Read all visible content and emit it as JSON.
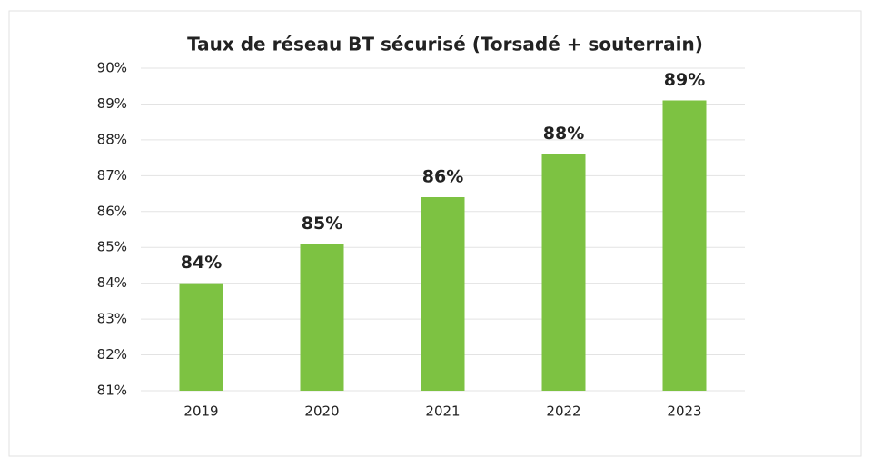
{
  "chart_data": {
    "type": "bar",
    "title": "Taux de réseau BT sécurisé (Torsadé + souterrain)",
    "categories": [
      "2019",
      "2020",
      "2021",
      "2022",
      "2023"
    ],
    "values": [
      84.0,
      85.1,
      86.4,
      87.6,
      89.1
    ],
    "value_labels": [
      "84%",
      "85%",
      "86%",
      "88%",
      "89%"
    ],
    "color": "#7dc242",
    "ylim": [
      81,
      90
    ],
    "yticks": [
      {
        "value": 81,
        "label": "81%"
      },
      {
        "value": 82,
        "label": "82%"
      },
      {
        "value": 83,
        "label": "83%"
      },
      {
        "value": 84,
        "label": "84%"
      },
      {
        "value": 85,
        "label": "85%"
      },
      {
        "value": 86,
        "label": "86%"
      },
      {
        "value": 87,
        "label": "87%"
      },
      {
        "value": 88,
        "label": "88%"
      },
      {
        "value": 89,
        "label": "89%"
      },
      {
        "value": 90,
        "label": "90%"
      }
    ],
    "grid": true
  }
}
